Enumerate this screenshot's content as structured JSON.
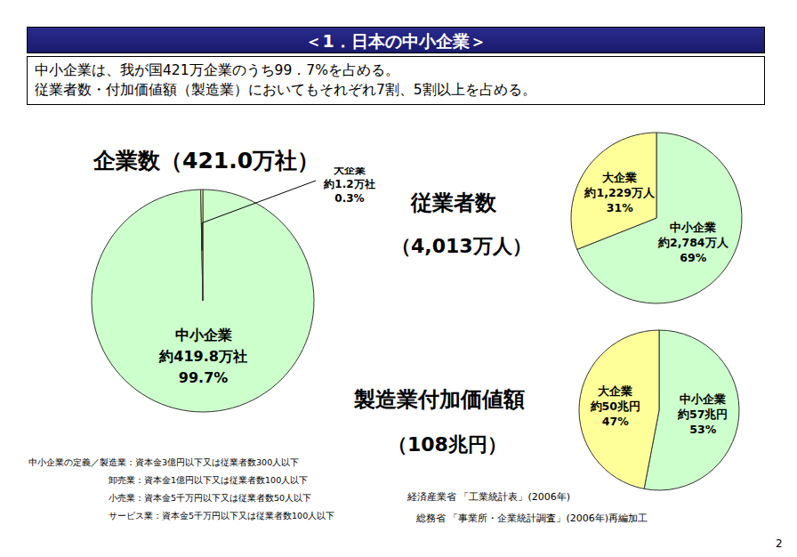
{
  "header": "＜1．日本の中小企業＞",
  "lead": [
    "中小企業は、我が国421万企業のうち99．7%を占める。",
    "従業者数・付加価値額（製造業）においてもそれぞれ7割、5割以上を占める。"
  ],
  "definition_label": "中小企業の定義／",
  "definitions": [
    "製造業：資本金3億円以下又は従業者数300人以下",
    "卸売業：資本金1億円以下又は従業者数100人以下",
    "小売業：資本金5千万円以下又は従業者数50人以下",
    "サービス業：資本金5千万円以下又は従業者数100人以下"
  ],
  "sources": [
    "経済産業省 「工業統計表」(2006年)",
    "総務省 「事業所・企業統計調査」(2006年)再編加工"
  ],
  "page": "2",
  "chart_data": [
    {
      "type": "pie",
      "title": "企業数（421.0万社）",
      "categories": [
        "中小企業",
        "大企業"
      ],
      "values": [
        99.7,
        0.3
      ],
      "value_labels": [
        "99.7%",
        "0.3%"
      ],
      "amounts": [
        419.8,
        1.2
      ],
      "amount_labels": [
        "約419.8万社",
        "約1.2万社"
      ],
      "colors": [
        "#ccffcc",
        "#ffff99"
      ],
      "data_labels": true
    },
    {
      "type": "pie",
      "title": "従業者数",
      "subtitle": "（4,013万人）",
      "categories": [
        "中小企業",
        "大企業"
      ],
      "values": [
        69,
        31
      ],
      "value_labels": [
        "69%",
        "31%"
      ],
      "amounts": [
        2784,
        1229
      ],
      "amount_labels": [
        "約2,784万人",
        "約1,229万人"
      ],
      "colors": [
        "#ccffcc",
        "#ffff99"
      ],
      "data_labels": true
    },
    {
      "type": "pie",
      "title": "製造業付加価値額",
      "subtitle": "（108兆円）",
      "categories": [
        "中小企業",
        "大企業"
      ],
      "values": [
        53,
        47
      ],
      "value_labels": [
        "53%",
        "47%"
      ],
      "amounts": [
        57,
        50
      ],
      "amount_labels": [
        "約57兆円",
        "約50兆円"
      ],
      "colors": [
        "#ccffcc",
        "#ffff99"
      ],
      "data_labels": true
    }
  ]
}
